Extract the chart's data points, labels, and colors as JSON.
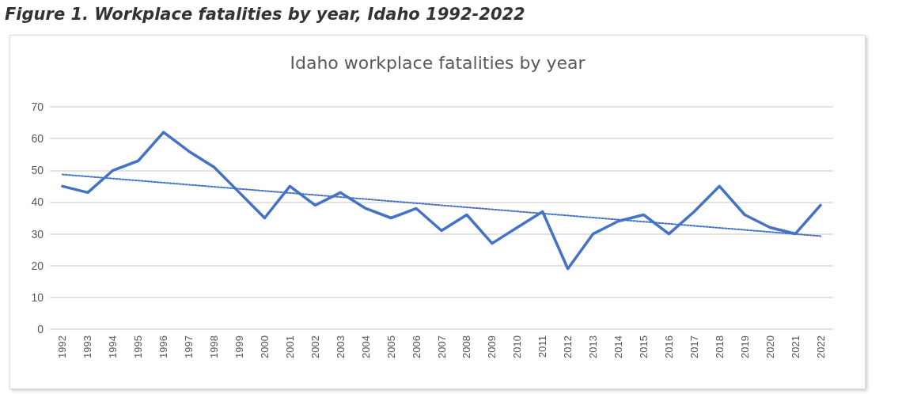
{
  "chart_data": {
    "type": "line",
    "subtitle": "Figure 1. Workplace fatalities by year, Idaho 1992-2022",
    "title": "Idaho workplace fatalities by year",
    "categories": [
      "1992",
      "1993",
      "1994",
      "1995",
      "1996",
      "1997",
      "1998",
      "1999",
      "2000",
      "2001",
      "2002",
      "2003",
      "2004",
      "2005",
      "2006",
      "2007",
      "2008",
      "2009",
      "2010",
      "2011",
      "2012",
      "2013",
      "2014",
      "2015",
      "2016",
      "2017",
      "2018",
      "2019",
      "2020",
      "2021",
      "2022"
    ],
    "series": [
      {
        "color": "#4472c4",
        "line_style": "solid",
        "values": [
          45,
          43,
          50,
          53,
          62,
          56,
          51,
          43,
          35,
          45,
          39,
          43,
          38,
          35,
          38,
          31,
          36,
          27,
          32,
          37,
          19,
          30,
          34,
          36,
          30,
          37,
          45,
          36,
          32,
          30,
          39
        ]
      },
      {
        "color": "#4472c4",
        "line_style": "dotted",
        "values": [
          48.7,
          null,
          null,
          null,
          null,
          null,
          null,
          null,
          null,
          null,
          null,
          null,
          null,
          null,
          null,
          null,
          null,
          null,
          null,
          null,
          null,
          null,
          null,
          null,
          null,
          null,
          null,
          null,
          null,
          null,
          29.3
        ]
      }
    ],
    "ylim": [
      0,
      70
    ],
    "yticks": [
      0,
      10,
      20,
      30,
      40,
      50,
      60,
      70
    ],
    "grid": "y",
    "marker": "none"
  }
}
